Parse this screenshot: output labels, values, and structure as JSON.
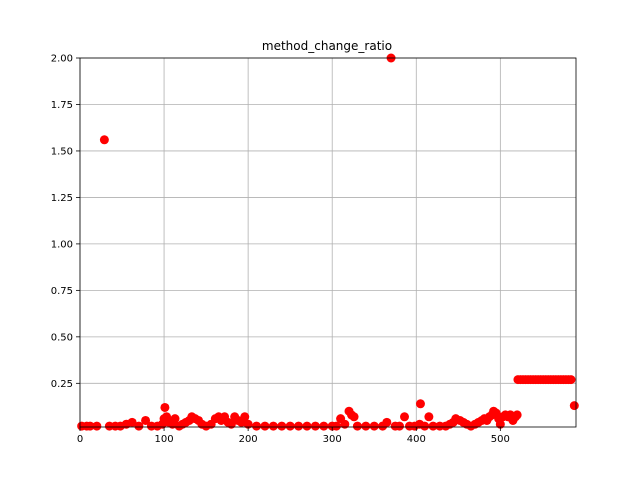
{
  "chart_data": {
    "type": "scatter",
    "title": "method_change_ratio",
    "xlabel": "",
    "ylabel": "",
    "xlim": [
      0,
      590
    ],
    "ylim": [
      0.015,
      2.0
    ],
    "grid": true,
    "marker_color": "#ff0000",
    "x_ticks": [
      0,
      100,
      200,
      300,
      400,
      500
    ],
    "x_tick_labels": [
      "0",
      "100",
      "200",
      "300",
      "400",
      "500"
    ],
    "y_ticks": [
      0.25,
      0.5,
      0.75,
      1.0,
      1.25,
      1.5,
      1.75,
      2.0
    ],
    "y_tick_labels": [
      "0.25",
      "0.50",
      "0.75",
      "1.00",
      "1.25",
      "1.50",
      "1.75",
      "2.00"
    ],
    "series": [
      {
        "points": [
          [
            2,
            0.02
          ],
          [
            8,
            0.02
          ],
          [
            12,
            0.02
          ],
          [
            20,
            0.02
          ],
          [
            29,
            1.56
          ],
          [
            35,
            0.02
          ],
          [
            42,
            0.02
          ],
          [
            48,
            0.02
          ],
          [
            55,
            0.03
          ],
          [
            62,
            0.04
          ],
          [
            70,
            0.02
          ],
          [
            78,
            0.05
          ],
          [
            85,
            0.02
          ],
          [
            92,
            0.02
          ],
          [
            98,
            0.03
          ],
          [
            100,
            0.06
          ],
          [
            101,
            0.12
          ],
          [
            103,
            0.07
          ],
          [
            106,
            0.04
          ],
          [
            110,
            0.03
          ],
          [
            113,
            0.06
          ],
          [
            118,
            0.02
          ],
          [
            122,
            0.03
          ],
          [
            126,
            0.04
          ],
          [
            130,
            0.05
          ],
          [
            133,
            0.07
          ],
          [
            137,
            0.06
          ],
          [
            141,
            0.05
          ],
          [
            145,
            0.03
          ],
          [
            150,
            0.02
          ],
          [
            156,
            0.03
          ],
          [
            161,
            0.06
          ],
          [
            165,
            0.07
          ],
          [
            168,
            0.05
          ],
          [
            172,
            0.07
          ],
          [
            176,
            0.04
          ],
          [
            180,
            0.03
          ],
          [
            184,
            0.07
          ],
          [
            188,
            0.05
          ],
          [
            192,
            0.04
          ],
          [
            196,
            0.07
          ],
          [
            200,
            0.03
          ],
          [
            210,
            0.02
          ],
          [
            220,
            0.02
          ],
          [
            230,
            0.02
          ],
          [
            240,
            0.02
          ],
          [
            250,
            0.02
          ],
          [
            260,
            0.02
          ],
          [
            270,
            0.02
          ],
          [
            280,
            0.02
          ],
          [
            290,
            0.02
          ],
          [
            300,
            0.02
          ],
          [
            305,
            0.02
          ],
          [
            310,
            0.06
          ],
          [
            315,
            0.03
          ],
          [
            320,
            0.1
          ],
          [
            323,
            0.08
          ],
          [
            326,
            0.07
          ],
          [
            330,
            0.02
          ],
          [
            340,
            0.02
          ],
          [
            350,
            0.02
          ],
          [
            360,
            0.02
          ],
          [
            365,
            0.04
          ],
          [
            370,
            2.0
          ],
          [
            375,
            0.02
          ],
          [
            380,
            0.02
          ],
          [
            386,
            0.07
          ],
          [
            392,
            0.02
          ],
          [
            398,
            0.02
          ],
          [
            404,
            0.03
          ],
          [
            405,
            0.14
          ],
          [
            410,
            0.02
          ],
          [
            415,
            0.07
          ],
          [
            420,
            0.02
          ],
          [
            428,
            0.02
          ],
          [
            435,
            0.02
          ],
          [
            440,
            0.03
          ],
          [
            444,
            0.04
          ],
          [
            447,
            0.06
          ],
          [
            452,
            0.05
          ],
          [
            456,
            0.04
          ],
          [
            460,
            0.03
          ],
          [
            465,
            0.02
          ],
          [
            470,
            0.03
          ],
          [
            474,
            0.04
          ],
          [
            478,
            0.05
          ],
          [
            481,
            0.06
          ],
          [
            484,
            0.05
          ],
          [
            487,
            0.07
          ],
          [
            490,
            0.08
          ],
          [
            492,
            0.1
          ],
          [
            495,
            0.09
          ],
          [
            498,
            0.06
          ],
          [
            500,
            0.03
          ],
          [
            503,
            0.07
          ],
          [
            506,
            0.08
          ],
          [
            509,
            0.07
          ],
          [
            512,
            0.08
          ],
          [
            515,
            0.05
          ],
          [
            518,
            0.07
          ],
          [
            520,
            0.08
          ],
          [
            521,
            0.27
          ],
          [
            524,
            0.27
          ],
          [
            527,
            0.27
          ],
          [
            530,
            0.27
          ],
          [
            533,
            0.27
          ],
          [
            536,
            0.27
          ],
          [
            539,
            0.27
          ],
          [
            542,
            0.27
          ],
          [
            545,
            0.27
          ],
          [
            548,
            0.27
          ],
          [
            551,
            0.27
          ],
          [
            554,
            0.27
          ],
          [
            557,
            0.27
          ],
          [
            560,
            0.27
          ],
          [
            563,
            0.27
          ],
          [
            566,
            0.27
          ],
          [
            569,
            0.27
          ],
          [
            572,
            0.27
          ],
          [
            575,
            0.27
          ],
          [
            578,
            0.27
          ],
          [
            581,
            0.27
          ],
          [
            584,
            0.27
          ],
          [
            588,
            0.13
          ]
        ]
      }
    ]
  }
}
